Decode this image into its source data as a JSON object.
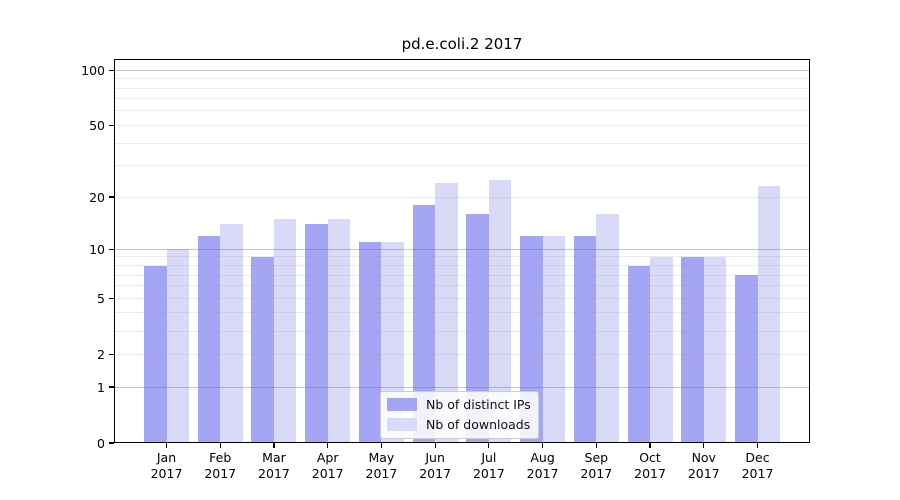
{
  "chart_data": {
    "type": "bar",
    "title": "pd.e.coli.2 2017",
    "xaxis": {
      "months": [
        "Jan",
        "Feb",
        "Mar",
        "Apr",
        "May",
        "Jun",
        "Jul",
        "Aug",
        "Sep",
        "Oct",
        "Nov",
        "Dec"
      ],
      "year": "2017"
    },
    "categories": [
      "Jan 2017",
      "Feb 2017",
      "Mar 2017",
      "Apr 2017",
      "May 2017",
      "Jun 2017",
      "Jul 2017",
      "Aug 2017",
      "Sep 2017",
      "Oct 2017",
      "Nov 2017",
      "Dec 2017"
    ],
    "series": [
      {
        "name": "Nb of distinct IPs",
        "color": "#a5a5f5",
        "values": [
          8,
          12,
          9,
          14,
          11,
          18,
          16,
          12,
          12,
          8,
          9,
          7
        ]
      },
      {
        "name": "Nb of downloads",
        "color": "#d9d9f8",
        "values": [
          10,
          14,
          15,
          15,
          11,
          24,
          25,
          12,
          16,
          9,
          9,
          23
        ]
      }
    ],
    "yscale": "log1p",
    "yticks": [
      0,
      1,
      2,
      5,
      10,
      20,
      50,
      100
    ],
    "ylim": [
      0,
      115
    ],
    "gridlines": {
      "major": [
        1,
        10,
        100
      ],
      "minor": [
        2,
        3,
        4,
        5,
        6,
        7,
        8,
        9,
        20,
        30,
        40,
        50,
        60,
        70,
        80,
        90
      ]
    },
    "legend_position": "inside-bottom-center",
    "colors": {
      "frame": "#000000",
      "major_grid": "#c6c6c6",
      "minor_grid": "#ebebeb",
      "background": "#ffffff"
    }
  }
}
